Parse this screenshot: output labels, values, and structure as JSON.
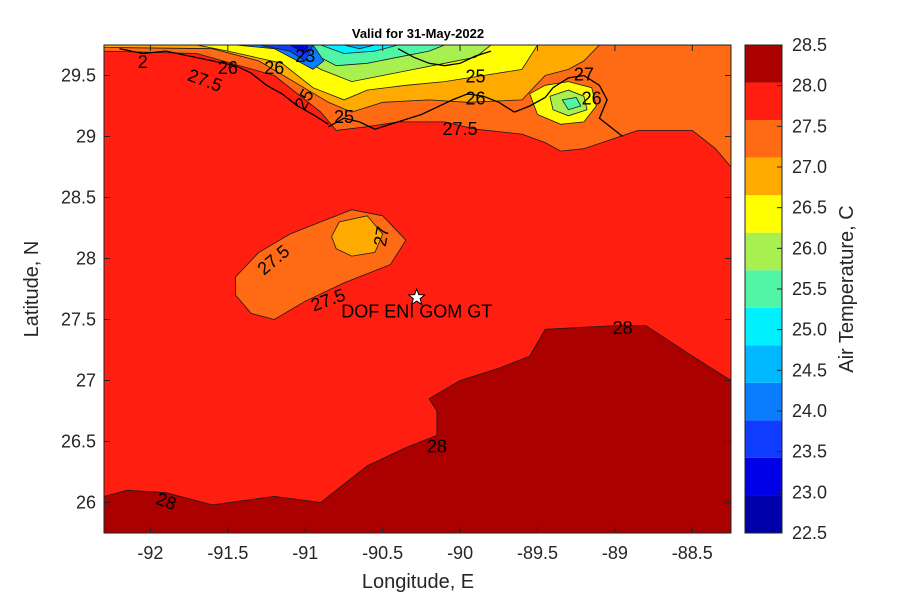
{
  "chart_data": {
    "type": "heatmap",
    "title": "Valid for 31-May-2022",
    "xlabel": "Longitude, E",
    "ylabel": "Latitude, N",
    "xlim": [
      -92.3,
      -88.25
    ],
    "ylim": [
      25.75,
      29.75
    ],
    "x_ticks": [
      -92,
      -91.5,
      -91,
      -90.5,
      -90,
      -89.5,
      -89,
      -88.5
    ],
    "y_ticks": [
      26,
      26.5,
      27,
      27.5,
      28,
      28.5,
      29,
      29.5
    ],
    "colorbar": {
      "label": "Air Temperature, C",
      "levels": [
        22.5,
        23.0,
        23.5,
        24.0,
        24.5,
        25.0,
        25.5,
        26.0,
        26.5,
        27.0,
        27.5,
        28.0,
        28.5
      ],
      "colors": [
        "#0000aa",
        "#0000e6",
        "#0f3cff",
        "#0a7dff",
        "#00b8ff",
        "#00f0ff",
        "#50f5a5",
        "#a8f050",
        "#ffff00",
        "#ffaa00",
        "#ff6a14",
        "#ff1e10",
        "#aa0000"
      ]
    },
    "regions": [
      {
        "range": [
          28.0,
          28.5
        ],
        "color": "#aa0000",
        "points": [
          [
            -92.3,
            26.05
          ],
          [
            -92.15,
            26.1
          ],
          [
            -91.9,
            26.08
          ],
          [
            -91.6,
            25.98
          ],
          [
            -91.2,
            26.05
          ],
          [
            -90.9,
            26.0
          ],
          [
            -90.6,
            26.3
          ],
          [
            -90.35,
            26.45
          ],
          [
            -90.15,
            26.55
          ],
          [
            -90.15,
            26.75
          ],
          [
            -90.2,
            26.85
          ],
          [
            -90.0,
            27.0
          ],
          [
            -89.75,
            27.1
          ],
          [
            -89.55,
            27.2
          ],
          [
            -89.45,
            27.42
          ],
          [
            -89.0,
            27.45
          ],
          [
            -88.8,
            27.45
          ],
          [
            -88.5,
            27.2
          ],
          [
            -88.25,
            27.0
          ],
          [
            -88.25,
            25.75
          ],
          [
            -92.3,
            25.75
          ]
        ]
      },
      {
        "range": [
          27.5,
          28.0
        ],
        "color": "#ff6a14",
        "points": [
          [
            -91.45,
            27.85
          ],
          [
            -91.3,
            28.05
          ],
          [
            -91.1,
            28.2
          ],
          [
            -90.9,
            28.3
          ],
          [
            -90.7,
            28.4
          ],
          [
            -90.5,
            28.35
          ],
          [
            -90.35,
            28.15
          ],
          [
            -90.45,
            27.95
          ],
          [
            -90.75,
            27.8
          ],
          [
            -91.0,
            27.65
          ],
          [
            -91.2,
            27.5
          ],
          [
            -91.35,
            27.55
          ],
          [
            -91.45,
            27.7
          ]
        ]
      },
      {
        "range": [
          27.0,
          27.5
        ],
        "color": "#ffaa00",
        "points": [
          [
            -90.83,
            28.18
          ],
          [
            -90.78,
            28.3
          ],
          [
            -90.6,
            28.35
          ],
          [
            -90.5,
            28.2
          ],
          [
            -90.55,
            28.05
          ],
          [
            -90.7,
            28.02
          ],
          [
            -90.8,
            28.08
          ]
        ]
      },
      {
        "range": [
          27.5,
          28.0
        ],
        "color": "#ff6a14",
        "points": [
          [
            -92.3,
            29.7
          ],
          [
            -91.7,
            29.68
          ],
          [
            -91.2,
            29.5
          ],
          [
            -90.9,
            29.2
          ],
          [
            -90.8,
            29.05
          ],
          [
            -90.6,
            29.08
          ],
          [
            -90.4,
            29.12
          ],
          [
            -90.1,
            29.12
          ],
          [
            -89.9,
            29.06
          ],
          [
            -89.6,
            29.02
          ],
          [
            -89.45,
            28.95
          ],
          [
            -89.35,
            28.88
          ],
          [
            -89.2,
            28.9
          ],
          [
            -88.85,
            29.05
          ],
          [
            -88.5,
            29.05
          ],
          [
            -88.35,
            28.9
          ],
          [
            -88.25,
            28.75
          ],
          [
            -88.25,
            29.75
          ],
          [
            -92.3,
            29.75
          ]
        ]
      },
      {
        "range": [
          27.0,
          27.5
        ],
        "color": "#ffaa00",
        "points": [
          [
            -92.3,
            29.73
          ],
          [
            -91.6,
            29.72
          ],
          [
            -91.3,
            29.62
          ],
          [
            -90.85,
            29.28
          ],
          [
            -90.7,
            29.2
          ],
          [
            -90.5,
            29.28
          ],
          [
            -90.2,
            29.3
          ],
          [
            -89.95,
            29.28
          ],
          [
            -89.6,
            29.3
          ],
          [
            -89.45,
            29.5
          ],
          [
            -89.3,
            29.55
          ],
          [
            -89.2,
            29.62
          ],
          [
            -89.1,
            29.75
          ],
          [
            -92.3,
            29.75
          ]
        ]
      },
      {
        "range": [
          26.5,
          27.0
        ],
        "color": "#ffff00",
        "points": [
          [
            -91.7,
            29.75
          ],
          [
            -91.5,
            29.7
          ],
          [
            -91.15,
            29.6
          ],
          [
            -90.95,
            29.4
          ],
          [
            -90.75,
            29.3
          ],
          [
            -90.6,
            29.38
          ],
          [
            -90.35,
            29.42
          ],
          [
            -90.1,
            29.45
          ],
          [
            -89.85,
            29.5
          ],
          [
            -89.6,
            29.55
          ],
          [
            -89.5,
            29.75
          ]
        ]
      },
      {
        "range": [
          26.5,
          27.0
        ],
        "color": "#ffff00",
        "points": [
          [
            -89.55,
            29.35
          ],
          [
            -89.45,
            29.42
          ],
          [
            -89.3,
            29.45
          ],
          [
            -89.15,
            29.4
          ],
          [
            -89.12,
            29.25
          ],
          [
            -89.2,
            29.12
          ],
          [
            -89.35,
            29.1
          ],
          [
            -89.5,
            29.18
          ]
        ]
      },
      {
        "range": [
          26.0,
          26.5
        ],
        "color": "#a8f050",
        "points": [
          [
            -91.35,
            29.75
          ],
          [
            -91.1,
            29.7
          ],
          [
            -90.9,
            29.55
          ],
          [
            -90.7,
            29.45
          ],
          [
            -90.5,
            29.5
          ],
          [
            -90.3,
            29.55
          ],
          [
            -90.1,
            29.6
          ],
          [
            -89.9,
            29.65
          ],
          [
            -89.8,
            29.75
          ]
        ]
      },
      {
        "range": [
          26.0,
          26.5
        ],
        "color": "#a8f050",
        "points": [
          [
            -89.42,
            29.33
          ],
          [
            -89.3,
            29.38
          ],
          [
            -89.2,
            29.33
          ],
          [
            -89.18,
            29.22
          ],
          [
            -89.3,
            29.17
          ],
          [
            -89.4,
            29.22
          ]
        ]
      },
      {
        "range": [
          25.5,
          26.0
        ],
        "color": "#50f5a5",
        "points": [
          [
            -91.1,
            29.75
          ],
          [
            -90.95,
            29.68
          ],
          [
            -90.8,
            29.58
          ],
          [
            -90.6,
            29.6
          ],
          [
            -90.4,
            29.65
          ],
          [
            -90.2,
            29.7
          ],
          [
            -90.1,
            29.75
          ]
        ]
      },
      {
        "range": [
          25.5,
          26.0
        ],
        "color": "#50f5a5",
        "points": [
          [
            -89.34,
            29.3
          ],
          [
            -89.25,
            29.32
          ],
          [
            -89.22,
            29.25
          ],
          [
            -89.3,
            29.22
          ]
        ]
      },
      {
        "range": [
          25.0,
          25.5
        ],
        "color": "#00f0ff",
        "points": [
          [
            -90.9,
            29.75
          ],
          [
            -90.75,
            29.68
          ],
          [
            -90.55,
            29.7
          ],
          [
            -90.4,
            29.75
          ]
        ]
      },
      {
        "range": [
          24.5,
          25.0
        ],
        "color": "#00b8ff",
        "points": [
          [
            -90.75,
            29.75
          ],
          [
            -90.65,
            29.72
          ],
          [
            -90.55,
            29.75
          ]
        ]
      },
      {
        "range": [
          24.0,
          24.5
        ],
        "color": "#0a7dff",
        "points": [
          [
            -91.45,
            29.75
          ],
          [
            -91.2,
            29.72
          ],
          [
            -91.05,
            29.62
          ],
          [
            -90.95,
            29.55
          ],
          [
            -90.88,
            29.62
          ],
          [
            -90.95,
            29.75
          ]
        ]
      },
      {
        "range": [
          23.5,
          24.0
        ],
        "color": "#0f3cff",
        "points": [
          [
            -91.3,
            29.75
          ],
          [
            -91.1,
            29.7
          ],
          [
            -91.0,
            29.62
          ],
          [
            -90.95,
            29.75
          ]
        ]
      },
      {
        "range": [
          23.0,
          23.5
        ],
        "color": "#0000e6",
        "points": [
          [
            -91.1,
            29.75
          ],
          [
            -91.0,
            29.68
          ],
          [
            -90.98,
            29.75
          ]
        ]
      }
    ],
    "contour_labels": [
      {
        "text": "28",
        "lon": -91.9,
        "lat": 26.0,
        "angle": 20
      },
      {
        "text": "28",
        "lon": -90.15,
        "lat": 26.45,
        "angle": 0
      },
      {
        "text": "28",
        "lon": -88.95,
        "lat": 27.42,
        "angle": 0
      },
      {
        "text": "27.5",
        "lon": -91.2,
        "lat": 27.98,
        "angle": -40
      },
      {
        "text": "27.5",
        "lon": -90.85,
        "lat": 27.65,
        "angle": -20
      },
      {
        "text": "27",
        "lon": -90.5,
        "lat": 28.18,
        "angle": -80
      },
      {
        "text": "27.5",
        "lon": -91.65,
        "lat": 29.45,
        "angle": 20
      },
      {
        "text": "27.5",
        "lon": -90.0,
        "lat": 29.05,
        "angle": 0
      },
      {
        "text": "27",
        "lon": -89.2,
        "lat": 29.5,
        "angle": 0
      },
      {
        "text": "26",
        "lon": -89.15,
        "lat": 29.3,
        "angle": 0
      },
      {
        "text": "25",
        "lon": -89.9,
        "lat": 29.48,
        "angle": 0
      },
      {
        "text": "26",
        "lon": -89.9,
        "lat": 29.3,
        "angle": 0
      },
      {
        "text": "26",
        "lon": -91.5,
        "lat": 29.55,
        "angle": 0
      },
      {
        "text": "26",
        "lon": -91.2,
        "lat": 29.55,
        "angle": 0
      },
      {
        "text": "25",
        "lon": -91.0,
        "lat": 29.3,
        "angle": -60
      },
      {
        "text": "25",
        "lon": -90.75,
        "lat": 29.15,
        "angle": 0
      },
      {
        "text": "2",
        "lon": -92.05,
        "lat": 29.6,
        "angle": 0
      },
      {
        "text": "23",
        "lon": -91.0,
        "lat": 29.65,
        "angle": 0
      }
    ],
    "marker": {
      "label": "DOF ENI GOM GT",
      "lon": -90.28,
      "lat": 27.68,
      "symbol": "star"
    }
  }
}
